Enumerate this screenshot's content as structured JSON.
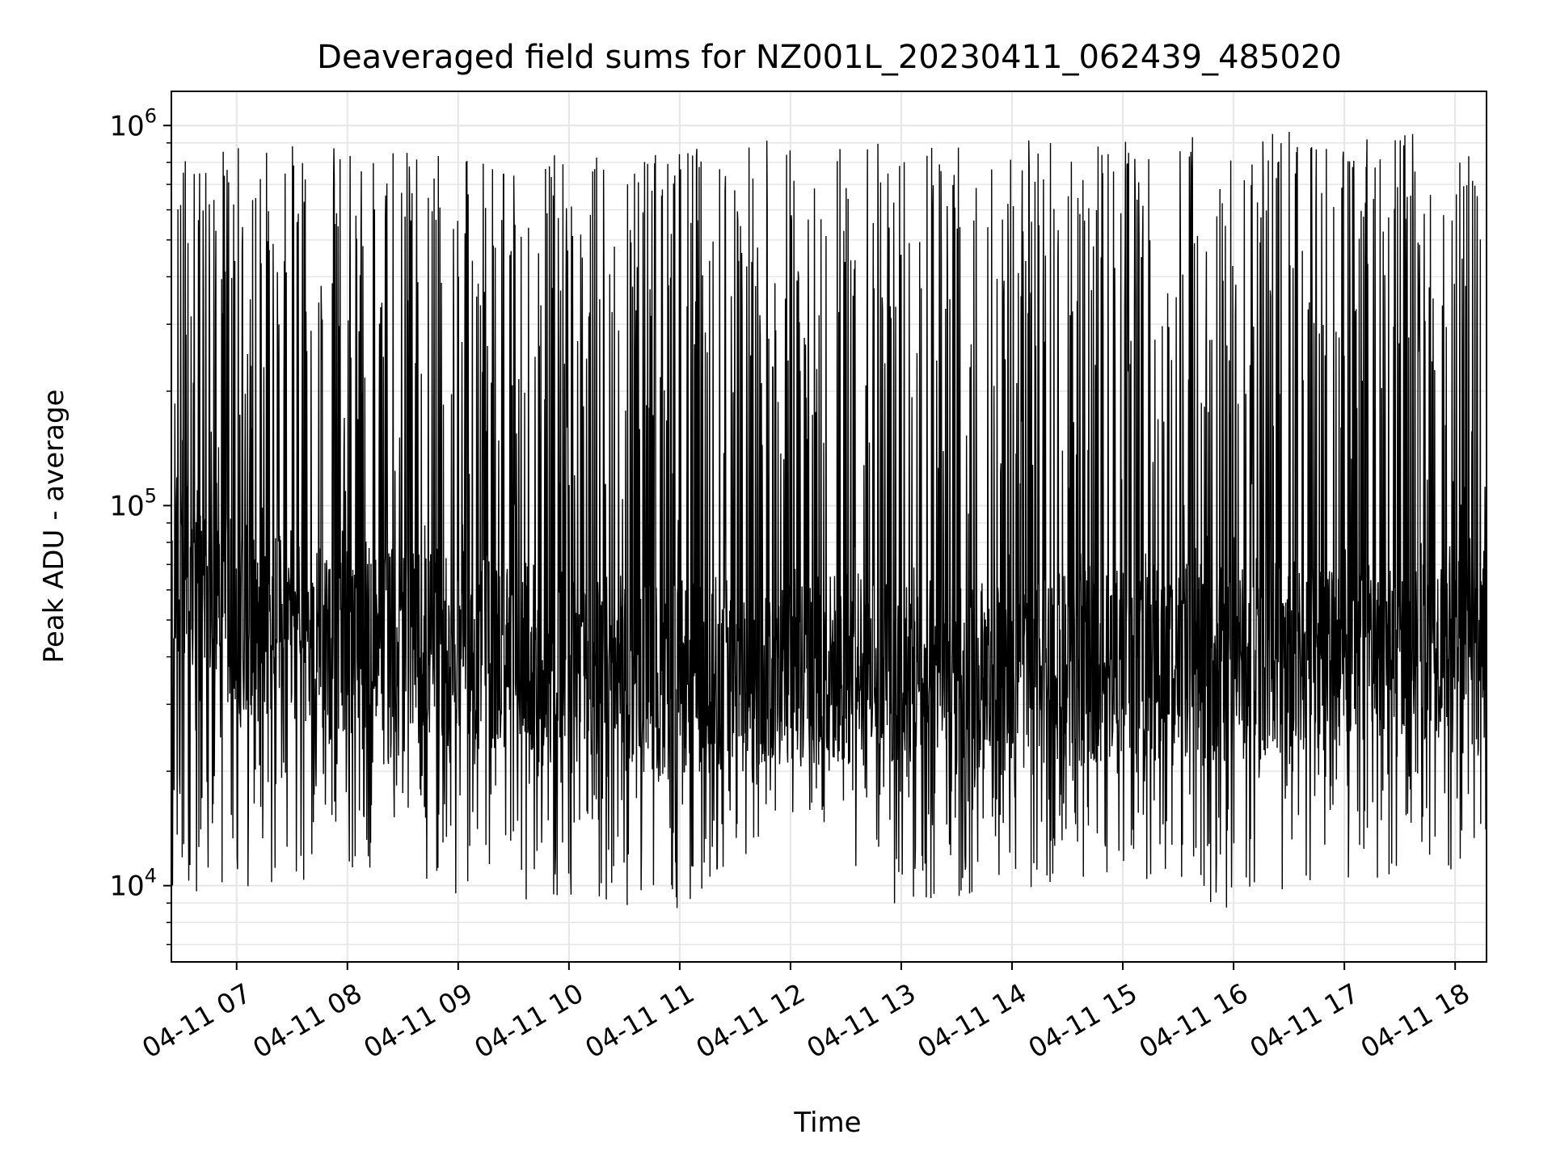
{
  "chart_data": {
    "type": "line",
    "title": "Deaveraged field sums for NZ001L_20230411_062439_485020",
    "xlabel": "Time",
    "ylabel": "Peak ADU - average",
    "yscale": "log",
    "ylim": [
      6300,
      1230000
    ],
    "xlim": [
      "2023-04-11 06:24:39",
      "2023-04-11 18:17:00"
    ],
    "grid": true,
    "line_color": "#000000",
    "grid_color": "#e6e6e6",
    "x_ticks": [
      {
        "t": "2023-04-11 07:00",
        "label": "04-11 07"
      },
      {
        "t": "2023-04-11 08:00",
        "label": "04-11 08"
      },
      {
        "t": "2023-04-11 09:00",
        "label": "04-11 09"
      },
      {
        "t": "2023-04-11 10:00",
        "label": "04-11 10"
      },
      {
        "t": "2023-04-11 11:00",
        "label": "04-11 11"
      },
      {
        "t": "2023-04-11 12:00",
        "label": "04-11 12"
      },
      {
        "t": "2023-04-11 13:00",
        "label": "04-11 13"
      },
      {
        "t": "2023-04-11 14:00",
        "label": "04-11 14"
      },
      {
        "t": "2023-04-11 15:00",
        "label": "04-11 15"
      },
      {
        "t": "2023-04-11 16:00",
        "label": "04-11 16"
      },
      {
        "t": "2023-04-11 17:00",
        "label": "04-11 17"
      },
      {
        "t": "2023-04-11 18:00",
        "label": "04-11 18"
      }
    ],
    "y_ticks": [
      {
        "value": 10000,
        "base": "10",
        "exp": "4"
      },
      {
        "value": 100000,
        "base": "10",
        "exp": "5"
      },
      {
        "value": 1000000,
        "base": "10",
        "exp": "6"
      }
    ],
    "series": [
      {
        "x": [
          "2023-04-11 06:24:39",
          "2023-04-11 07:00",
          "2023-04-11 08:00",
          "2023-04-11 09:00",
          "2023-04-11 10:00",
          "2023-04-11 11:00",
          "2023-04-11 12:00",
          "2023-04-11 13:00",
          "2023-04-11 14:00",
          "2023-04-11 15:00",
          "2023-04-11 16:00",
          "2023-04-11 17:00",
          "2023-04-11 18:00",
          "2023-04-11 18:17:00"
        ],
        "baseline": [
          70000,
          50000,
          45000,
          42000,
          38000,
          35000,
          38000,
          36000,
          34000,
          40000,
          38000,
          42000,
          45000,
          45000
        ],
        "min": [
          9700,
          9000,
          11000,
          9500,
          9000,
          8600,
          15000,
          8700,
          9500,
          11000,
          8000,
          10000,
          11000,
          13000
        ],
        "max": [
          800000,
          900000,
          890000,
          820000,
          840000,
          880000,
          940000,
          920000,
          910000,
          940000,
          960000,
          1000000,
          950000,
          900000
        ]
      }
    ]
  }
}
